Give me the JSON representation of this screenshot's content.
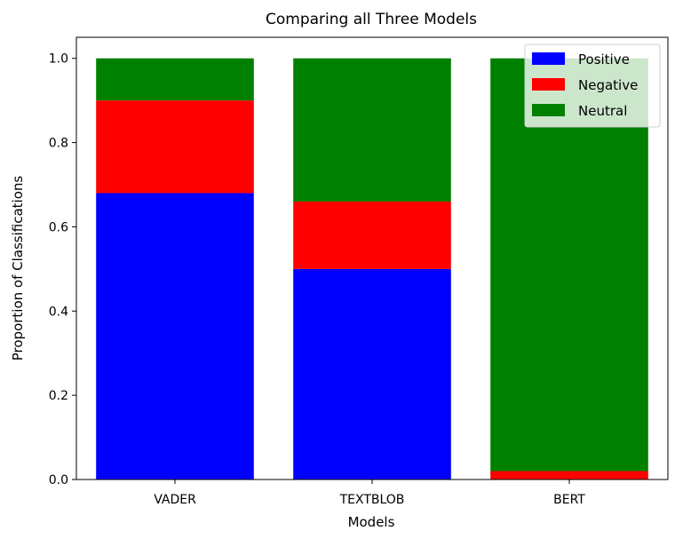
{
  "chart_data": {
    "type": "bar",
    "stacked": true,
    "title": "Comparing all Three Models",
    "xlabel": "Models",
    "ylabel": "Proportion of Classifications",
    "ylim": [
      0,
      1.05
    ],
    "yticks": [
      "0.0",
      "0.2",
      "0.4",
      "0.6",
      "0.8",
      "1.0"
    ],
    "categories": [
      "VADER",
      "TEXTBLOB",
      "BERT"
    ],
    "series": [
      {
        "name": "Positive",
        "color": "#0000ff",
        "values": [
          0.68,
          0.5,
          0.0
        ]
      },
      {
        "name": "Negative",
        "color": "#ff0000",
        "values": [
          0.22,
          0.16,
          0.02
        ]
      },
      {
        "name": "Neutral",
        "color": "#008000",
        "values": [
          0.1,
          0.34,
          0.98
        ]
      }
    ],
    "legend_position": "top-right",
    "grid": false
  }
}
